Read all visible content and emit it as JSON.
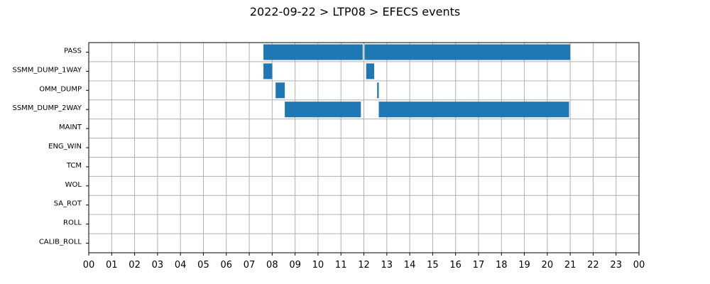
{
  "chart_data": {
    "type": "bar",
    "orientation": "horizontal-timeline",
    "title": "2022-09-22 > LTP08 > EFECS events",
    "xlabel": "",
    "ylabel": "",
    "xlim": [
      0,
      24
    ],
    "grid": true,
    "bar_color": "#1f77b4",
    "categories": [
      "PASS",
      "SSMM_DUMP_1WAY",
      "OMM_DUMP",
      "SSMM_DUMP_2WAY",
      "MAINT",
      "ENG_WIN",
      "TCM",
      "WOL",
      "SA_ROT",
      "ROLL",
      "CALIB_ROLL"
    ],
    "xtick_labels": [
      "00",
      "01",
      "02",
      "03",
      "04",
      "05",
      "06",
      "07",
      "08",
      "09",
      "10",
      "11",
      "12",
      "13",
      "14",
      "15",
      "16",
      "17",
      "18",
      "19",
      "20",
      "21",
      "22",
      "23",
      "00"
    ],
    "events": [
      {
        "category": "PASS",
        "start": 7.62,
        "end": 11.95
      },
      {
        "category": "PASS",
        "start": 12.03,
        "end": 21.0
      },
      {
        "category": "SSMM_DUMP_1WAY",
        "start": 7.62,
        "end": 8.0
      },
      {
        "category": "SSMM_DUMP_1WAY",
        "start": 12.1,
        "end": 12.45
      },
      {
        "category": "OMM_DUMP",
        "start": 8.15,
        "end": 8.55
      },
      {
        "category": "OMM_DUMP",
        "start": 12.58,
        "end": 12.65
      },
      {
        "category": "SSMM_DUMP_2WAY",
        "start": 8.55,
        "end": 11.87
      },
      {
        "category": "SSMM_DUMP_2WAY",
        "start": 12.65,
        "end": 20.95
      }
    ]
  }
}
